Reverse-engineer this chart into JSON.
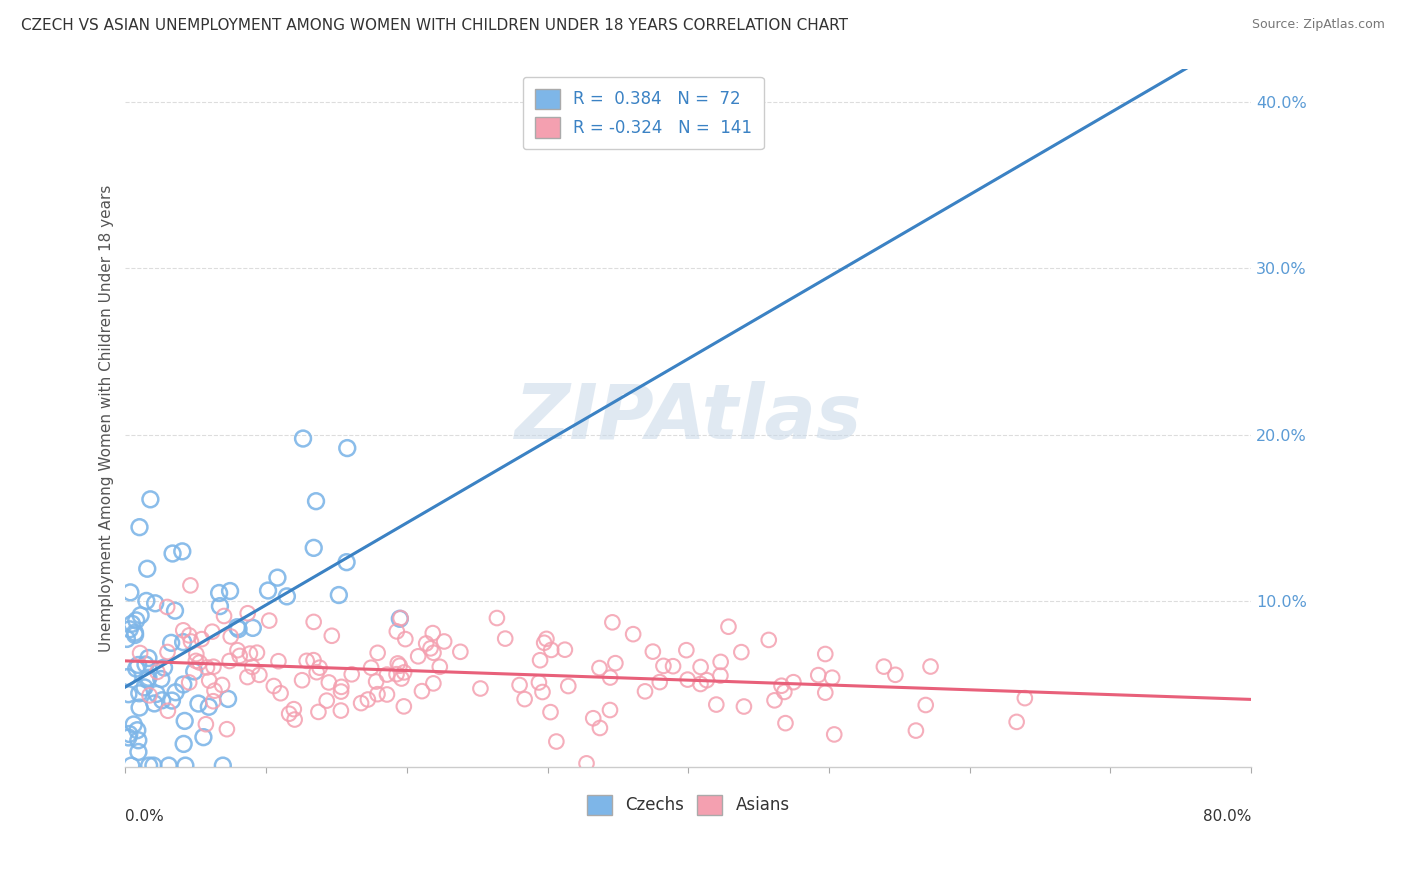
{
  "title": "CZECH VS ASIAN UNEMPLOYMENT AMONG WOMEN WITH CHILDREN UNDER 18 YEARS CORRELATION CHART",
  "source": "Source: ZipAtlas.com",
  "ylabel": "Unemployment Among Women with Children Under 18 years",
  "xmin": 0.0,
  "xmax": 0.8,
  "ymin": 0.0,
  "ymax": 0.42,
  "czech_R": 0.384,
  "czech_N": 72,
  "asian_R": -0.324,
  "asian_N": 141,
  "czech_color": "#7EB6E8",
  "asian_color": "#F4A0B0",
  "czech_line_color": "#3B82C4",
  "asian_line_color": "#E8607A",
  "dash_line_color": "#BBBBBB",
  "background_color": "#FFFFFF",
  "grid_color": "#DDDDDD",
  "title_color": "#333333",
  "watermark_color": "#C8D8E8",
  "axis_label_color": "#5B9BD5",
  "legend_text_color": "#3B82C4",
  "czech_seed": 42,
  "asian_seed": 123
}
